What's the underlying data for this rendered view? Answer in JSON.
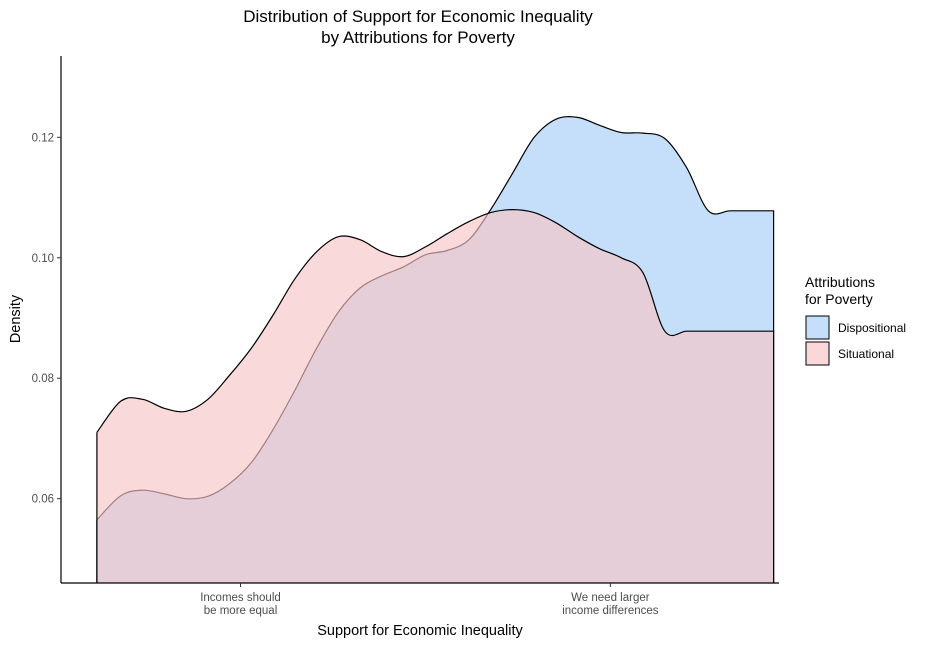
{
  "chart_data": {
    "type": "area",
    "title": [
      "Distribution of Support for Economic Inequality",
      "by Attributions for Poverty"
    ],
    "xlabel": "Support for Economic Inequality",
    "ylabel": "Density",
    "ylim": [
      0.046,
      0.1335
    ],
    "xlim": [
      0.45,
      7.05
    ],
    "x_ticks": [
      {
        "x": 2.1,
        "label": [
          "Incomes should",
          "be more equal"
        ]
      },
      {
        "x": 5.5,
        "label": [
          "We need larger",
          "income differences"
        ]
      }
    ],
    "y_ticks": [
      {
        "value": 0.06,
        "label": "0.06"
      },
      {
        "value": 0.08,
        "label": "0.08"
      },
      {
        "value": 0.1,
        "label": "0.10"
      },
      {
        "value": 0.12,
        "label": "0.12"
      }
    ],
    "grid": false,
    "legend": {
      "title": [
        "Attributions",
        "for Poverty"
      ],
      "position": "right"
    },
    "x": [
      0.78,
      1.0,
      1.2,
      1.4,
      1.6,
      1.8,
      2.0,
      2.2,
      2.4,
      2.6,
      2.8,
      3.0,
      3.2,
      3.4,
      3.6,
      3.8,
      4.0,
      4.2,
      4.4,
      4.6,
      4.8,
      5.0,
      5.2,
      5.4,
      5.6,
      5.8,
      6.0,
      6.2,
      6.4,
      6.6,
      6.8,
      7.0
    ],
    "series": [
      {
        "name": "Dispositional",
        "color": "#a6cdf6",
        "values": [
          0.0565,
          0.0605,
          0.0614,
          0.0608,
          0.06,
          0.0604,
          0.0625,
          0.066,
          0.0715,
          0.078,
          0.085,
          0.091,
          0.095,
          0.097,
          0.0985,
          0.1005,
          0.1012,
          0.103,
          0.108,
          0.114,
          0.12,
          0.123,
          0.1233,
          0.122,
          0.1208,
          0.1207,
          0.1198,
          0.115,
          0.1078,
          0.1078,
          0.1078,
          0.1078
        ]
      },
      {
        "name": "Situational",
        "color": "#f7c4c6",
        "values": [
          0.071,
          0.0762,
          0.0765,
          0.075,
          0.0745,
          0.0765,
          0.0805,
          0.085,
          0.0905,
          0.0965,
          0.101,
          0.1035,
          0.103,
          0.101,
          0.1002,
          0.1018,
          0.104,
          0.106,
          0.1075,
          0.108,
          0.1075,
          0.1058,
          0.1035,
          0.1015,
          0.1,
          0.0975,
          0.0878,
          0.0878,
          0.0878,
          0.0878,
          0.0878,
          0.0878
        ]
      }
    ]
  }
}
